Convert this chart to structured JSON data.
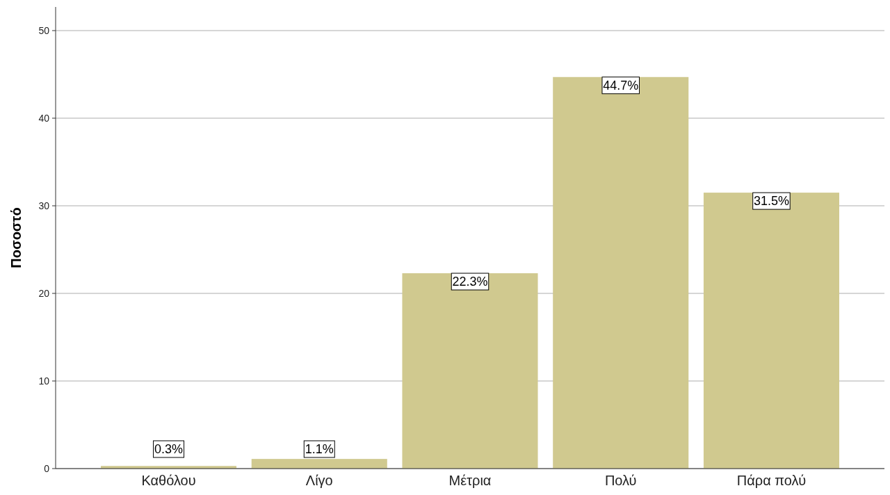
{
  "chart_data": {
    "type": "bar",
    "ylabel": "Ποσοστό",
    "categories": [
      "Καθόλου",
      "Λίγο",
      "Μέτρια",
      "Πολύ",
      "Πάρα πολύ"
    ],
    "values": [
      0.3,
      1.1,
      22.3,
      44.7,
      31.5
    ],
    "value_labels": [
      "0.3%",
      "1.1%",
      "22.3%",
      "44.7%",
      "31.5%"
    ],
    "color": "#d0c98f",
    "ylim": [
      0,
      52.7
    ],
    "yticks": [
      0,
      10,
      20,
      30,
      40,
      50
    ],
    "grid": "y"
  }
}
